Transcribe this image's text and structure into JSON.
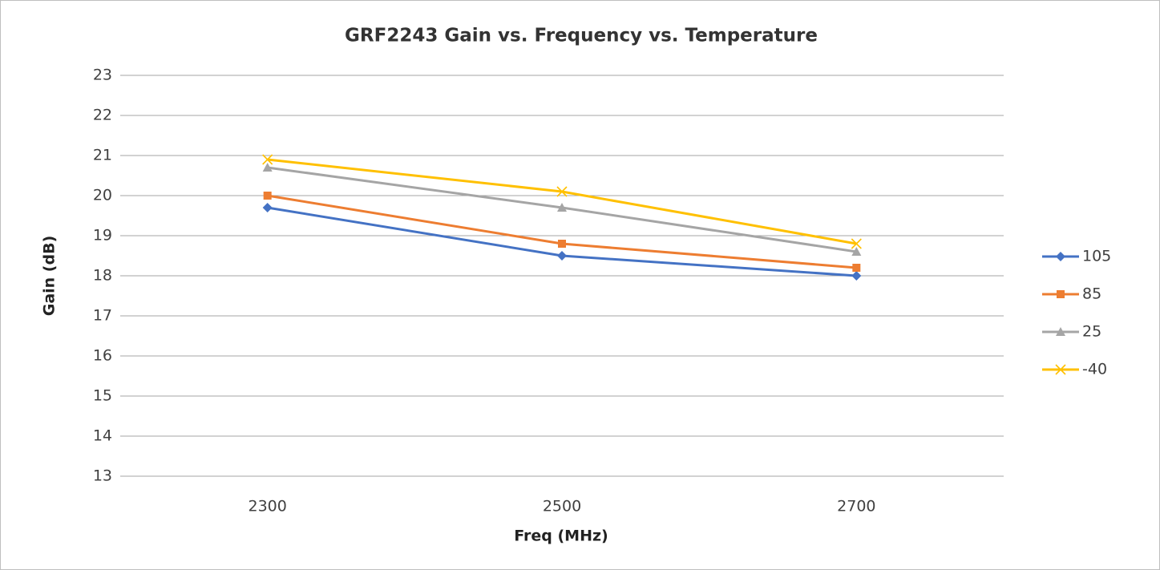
{
  "chart_data": {
    "type": "line",
    "title": "GRF2243 Gain vs. Frequency vs. Temperature",
    "x_label": "Freq (MHz)",
    "y_label": "Gain (dB)",
    "categories": [
      "2300",
      "2500",
      "2700"
    ],
    "series": [
      {
        "name": "105",
        "color": "#4472c4",
        "marker": "diamond",
        "values": [
          19.7,
          18.5,
          18.0
        ]
      },
      {
        "name": "85",
        "color": "#ed7d31",
        "marker": "square",
        "values": [
          20.0,
          18.8,
          18.2
        ]
      },
      {
        "name": "25",
        "color": "#a5a5a5",
        "marker": "triangle",
        "values": [
          20.7,
          19.7,
          18.6
        ]
      },
      {
        "name": "-40",
        "color": "#ffc000",
        "marker": "x",
        "values": [
          20.9,
          20.1,
          18.8
        ]
      }
    ],
    "ylim": [
      13,
      23
    ],
    "yticks": [
      13,
      14,
      15,
      16,
      17,
      18,
      19,
      20,
      21,
      22,
      23
    ],
    "grid": true,
    "legend": "right"
  }
}
